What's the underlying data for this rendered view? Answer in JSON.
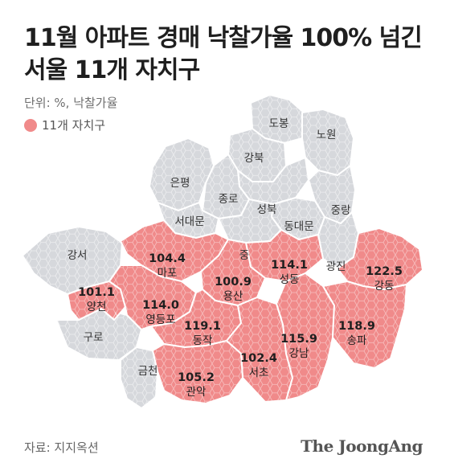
{
  "title": {
    "line1": "11월 아파트 경매 낙찰가율 100% 넘긴",
    "line2": "서울 11개 자치구"
  },
  "unit": "단위: %, 낙찰가율",
  "legend": {
    "label": "11개 자치구",
    "color": "#f08a8a"
  },
  "colors": {
    "highlight": "#f08a8a",
    "base": "#d6d8dc",
    "border": "#ffffff",
    "text": "#1f1f1f"
  },
  "districts": [
    {
      "name": "도봉",
      "highlight": false
    },
    {
      "name": "강북",
      "highlight": false
    },
    {
      "name": "노원",
      "highlight": false
    },
    {
      "name": "은평",
      "highlight": false
    },
    {
      "name": "성북",
      "highlight": false
    },
    {
      "name": "중랑",
      "highlight": false
    },
    {
      "name": "종로",
      "highlight": false
    },
    {
      "name": "서대문",
      "highlight": false
    },
    {
      "name": "동대문",
      "highlight": false
    },
    {
      "name": "중",
      "highlight": false
    },
    {
      "name": "광진",
      "highlight": false
    },
    {
      "name": "강서",
      "highlight": false
    },
    {
      "name": "구로",
      "highlight": false
    },
    {
      "name": "금천",
      "highlight": false
    },
    {
      "name": "마포",
      "value": "104.4",
      "highlight": true
    },
    {
      "name": "성동",
      "value": "114.1",
      "highlight": true
    },
    {
      "name": "용산",
      "value": "100.9",
      "highlight": true
    },
    {
      "name": "강동",
      "value": "122.5",
      "highlight": true
    },
    {
      "name": "양천",
      "value": "101.1",
      "highlight": true
    },
    {
      "name": "영등포",
      "value": "114.0",
      "highlight": true
    },
    {
      "name": "동작",
      "value": "119.1",
      "highlight": true
    },
    {
      "name": "강남",
      "value": "115.9",
      "highlight": true
    },
    {
      "name": "송파",
      "value": "118.9",
      "highlight": true
    },
    {
      "name": "서초",
      "value": "102.4",
      "highlight": true
    },
    {
      "name": "관악",
      "value": "105.2",
      "highlight": true
    }
  ],
  "source": "자료: 지지옥션",
  "brand": "The JoongAng"
}
